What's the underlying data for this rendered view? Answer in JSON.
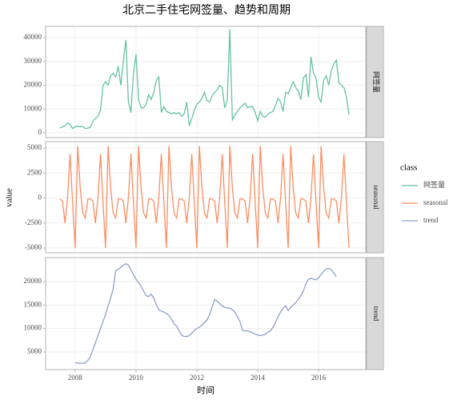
{
  "chart_data": {
    "type": "line",
    "title": "北京二手住宅网签量、趋势和周期",
    "x_label": "时间",
    "y_label": "value",
    "legend_title": "class",
    "grid": true,
    "x": [
      2007.5,
      2007.583,
      2007.667,
      2007.75,
      2007.833,
      2007.917,
      2008,
      2008.083,
      2008.167,
      2008.25,
      2008.333,
      2008.417,
      2008.5,
      2008.583,
      2008.667,
      2008.75,
      2008.833,
      2008.917,
      2009,
      2009.083,
      2009.167,
      2009.25,
      2009.333,
      2009.417,
      2009.5,
      2009.583,
      2009.667,
      2009.75,
      2009.833,
      2009.917,
      2010,
      2010.083,
      2010.167,
      2010.25,
      2010.333,
      2010.417,
      2010.5,
      2010.583,
      2010.667,
      2010.75,
      2010.833,
      2010.917,
      2011,
      2011.083,
      2011.167,
      2011.25,
      2011.333,
      2011.417,
      2011.5,
      2011.583,
      2011.667,
      2011.75,
      2011.833,
      2011.917,
      2012,
      2012.083,
      2012.167,
      2012.25,
      2012.333,
      2012.417,
      2012.5,
      2012.583,
      2012.667,
      2012.75,
      2012.833,
      2012.917,
      2013,
      2013.083,
      2013.167,
      2013.25,
      2013.333,
      2013.417,
      2013.5,
      2013.583,
      2013.667,
      2013.75,
      2013.833,
      2013.917,
      2014,
      2014.083,
      2014.167,
      2014.25,
      2014.333,
      2014.417,
      2014.5,
      2014.583,
      2014.667,
      2014.75,
      2014.833,
      2014.917,
      2015,
      2015.083,
      2015.167,
      2015.25,
      2015.333,
      2015.417,
      2015.5,
      2015.583,
      2015.667,
      2015.75,
      2015.833,
      2015.917,
      2016,
      2016.083,
      2016.167,
      2016.25,
      2016.333,
      2016.417,
      2016.5,
      2016.583,
      2016.667,
      2016.75,
      2016.833,
      2016.917,
      2017
    ],
    "xlim": [
      2007.03,
      2017.55
    ],
    "xticks": [
      2008,
      2010,
      2012,
      2014,
      2016
    ],
    "series": [
      {
        "name": "网签量",
        "color": "#66c2a5",
        "ylim": [
          -2000,
          44700
        ],
        "yticks": [
          0,
          10000,
          20000,
          30000,
          40000
        ],
        "values": [
          2000,
          2500,
          3000,
          4200,
          3500,
          1800,
          2500,
          2800,
          2600,
          2700,
          1800,
          2000,
          2300,
          5000,
          6000,
          7000,
          9500,
          20000,
          21500,
          20000,
          24000,
          25000,
          23500,
          28000,
          20000,
          30000,
          39000,
          13000,
          8500,
          25000,
          33000,
          14000,
          10500,
          10500,
          12000,
          16000,
          14000,
          17000,
          22000,
          23500,
          8500,
          11000,
          9000,
          8500,
          8000,
          8500,
          8000,
          8500,
          7000,
          8000,
          13000,
          3000,
          6000,
          9500,
          12000,
          13000,
          14500,
          17000,
          13500,
          13000,
          15500,
          17000,
          18000,
          20000,
          19000,
          10500,
          14000,
          43500,
          5500,
          7500,
          9000,
          10500,
          11500,
          12500,
          10500,
          11000,
          11000,
          8500,
          5000,
          9000,
          7000,
          6500,
          8000,
          8500,
          9000,
          11500,
          14500,
          13000,
          9000,
          17000,
          16500,
          19000,
          21500,
          19000,
          17500,
          14000,
          23000,
          24500,
          15000,
          32000,
          25000,
          23000,
          15000,
          13000,
          22000,
          24000,
          20000,
          26000,
          29000,
          30500,
          21000,
          20000,
          19000,
          15000,
          7500
        ]
      },
      {
        "name": "seasonal",
        "color": "#fc8d62",
        "ylim": [
          -5480,
          5640
        ],
        "yticks": [
          -5000,
          -2500,
          0,
          2500,
          5000
        ],
        "values": [
          -100,
          -300,
          -2500,
          0,
          4400,
          -500,
          -5000,
          5200,
          1000,
          -1500,
          -2000,
          -100,
          -100,
          -300,
          -2500,
          0,
          4400,
          -500,
          -5000,
          5200,
          1000,
          -1500,
          -2000,
          -100,
          -100,
          -300,
          -2500,
          0,
          4400,
          -500,
          -5000,
          5200,
          1000,
          -1500,
          -2000,
          -100,
          -100,
          -300,
          -2500,
          0,
          4400,
          -500,
          -5000,
          5200,
          1000,
          -1500,
          -2000,
          -100,
          -100,
          -300,
          -2500,
          0,
          4400,
          -500,
          -5000,
          5200,
          1000,
          -1500,
          -2000,
          -100,
          -100,
          -300,
          -2500,
          0,
          4400,
          -500,
          -5000,
          5200,
          1000,
          -1500,
          -2000,
          -100,
          -100,
          -300,
          -2500,
          0,
          4400,
          -500,
          -5000,
          5200,
          1000,
          -1500,
          -2000,
          -100,
          -100,
          -300,
          -2500,
          0,
          4400,
          -500,
          -5000,
          5200,
          1000,
          -1500,
          -2000,
          -100,
          -100,
          -300,
          -2500,
          0,
          4400,
          -500,
          -5000,
          5200,
          1000,
          -1500,
          -2000,
          -100,
          -100,
          -300,
          -2500,
          0,
          4400,
          -500,
          -5000
        ]
      },
      {
        "name": "trend",
        "color": "#8da0cb",
        "ylim": [
          1250,
          25100
        ],
        "yticks": [
          5000,
          10000,
          15000,
          20000
        ],
        "values": [
          null,
          null,
          null,
          null,
          null,
          null,
          2700,
          2650,
          2600,
          2550,
          2700,
          3200,
          4000,
          5500,
          7000,
          8500,
          10000,
          11500,
          13000,
          14800,
          16500,
          18500,
          22300,
          22600,
          23000,
          23500,
          23800,
          23500,
          22500,
          21500,
          20500,
          19800,
          19000,
          18000,
          17000,
          16800,
          17300,
          16500,
          15000,
          14000,
          13700,
          13500,
          13200,
          12800,
          12000,
          11000,
          10500,
          9500,
          8600,
          8300,
          8300,
          8500,
          9000,
          9600,
          10000,
          10300,
          10700,
          11300,
          11800,
          13000,
          14500,
          16200,
          15800,
          15300,
          14800,
          14500,
          14400,
          14300,
          14000,
          13500,
          12500,
          11500,
          9600,
          9500,
          9500,
          9300,
          9100,
          8800,
          8600,
          8500,
          8600,
          8800,
          9200,
          9500,
          10300,
          11300,
          12500,
          13500,
          14300,
          14800,
          13800,
          14500,
          15000,
          15500,
          16200,
          17000,
          18000,
          19500,
          20500,
          20700,
          20500,
          20400,
          20800,
          21500,
          22200,
          22700,
          22800,
          22500,
          21800,
          21000,
          null,
          null,
          null,
          null,
          null
        ]
      }
    ]
  }
}
